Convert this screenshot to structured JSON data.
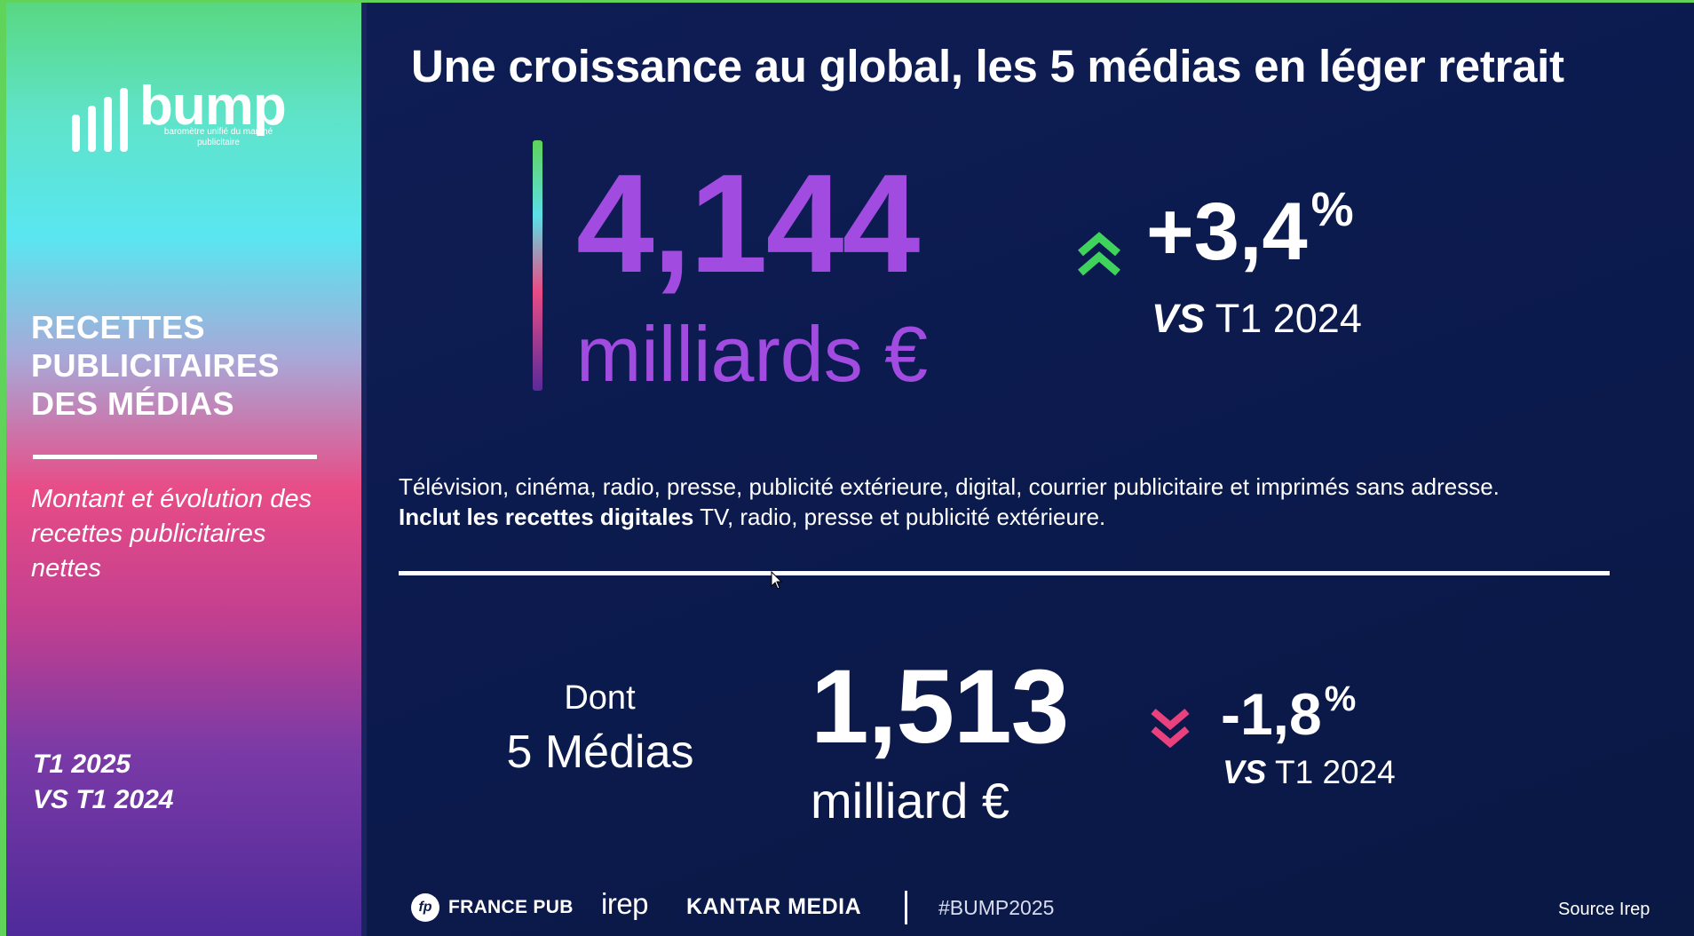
{
  "sidebar": {
    "logo": {
      "word": "bump",
      "tagline": "baromètre unifié du marché publicitaire"
    },
    "title_lines": [
      "RECETTES",
      "PUBLICITAIRES",
      "DES MÉDIAS"
    ],
    "subtitle": "Montant et évolution des recettes publicitaires nettes",
    "period_lines": [
      "T1 2025",
      "VS T1 2024"
    ]
  },
  "main": {
    "headline": "Une croissance au global, les 5 médias en léger retrait",
    "total": {
      "amount": "4,144",
      "unit": "milliards €",
      "change_value": "+3,4",
      "change_unit": "%",
      "vs_prefix": "VS",
      "vs_period": "T1 2024",
      "direction": "up",
      "arrow_color": "#3fd35e"
    },
    "description": {
      "line1": "Télévision, cinéma, radio, presse, publicité extérieure, digital, courrier publicitaire et imprimés sans adresse.",
      "line2_bold": "Inclut les recettes digitales",
      "line2_rest": " TV, radio, presse et publicité extérieure."
    },
    "five_media": {
      "label_top": "Dont",
      "label_bottom": "5 Médias",
      "amount": "1,513",
      "unit": "milliard €",
      "change_value": "-1,8",
      "change_unit": "%",
      "vs_prefix": "VS",
      "vs_period": "T1 2024",
      "direction": "down",
      "arrow_color": "#e8417e"
    },
    "accent_color": "#a24be0"
  },
  "footer": {
    "francepub_mark": "fp",
    "francepub": "FRANCE PUB",
    "irep": "irep",
    "kantar": "KANTAR MEDIA",
    "hashtag": "#BUMP2025",
    "source": "Source Irep"
  }
}
